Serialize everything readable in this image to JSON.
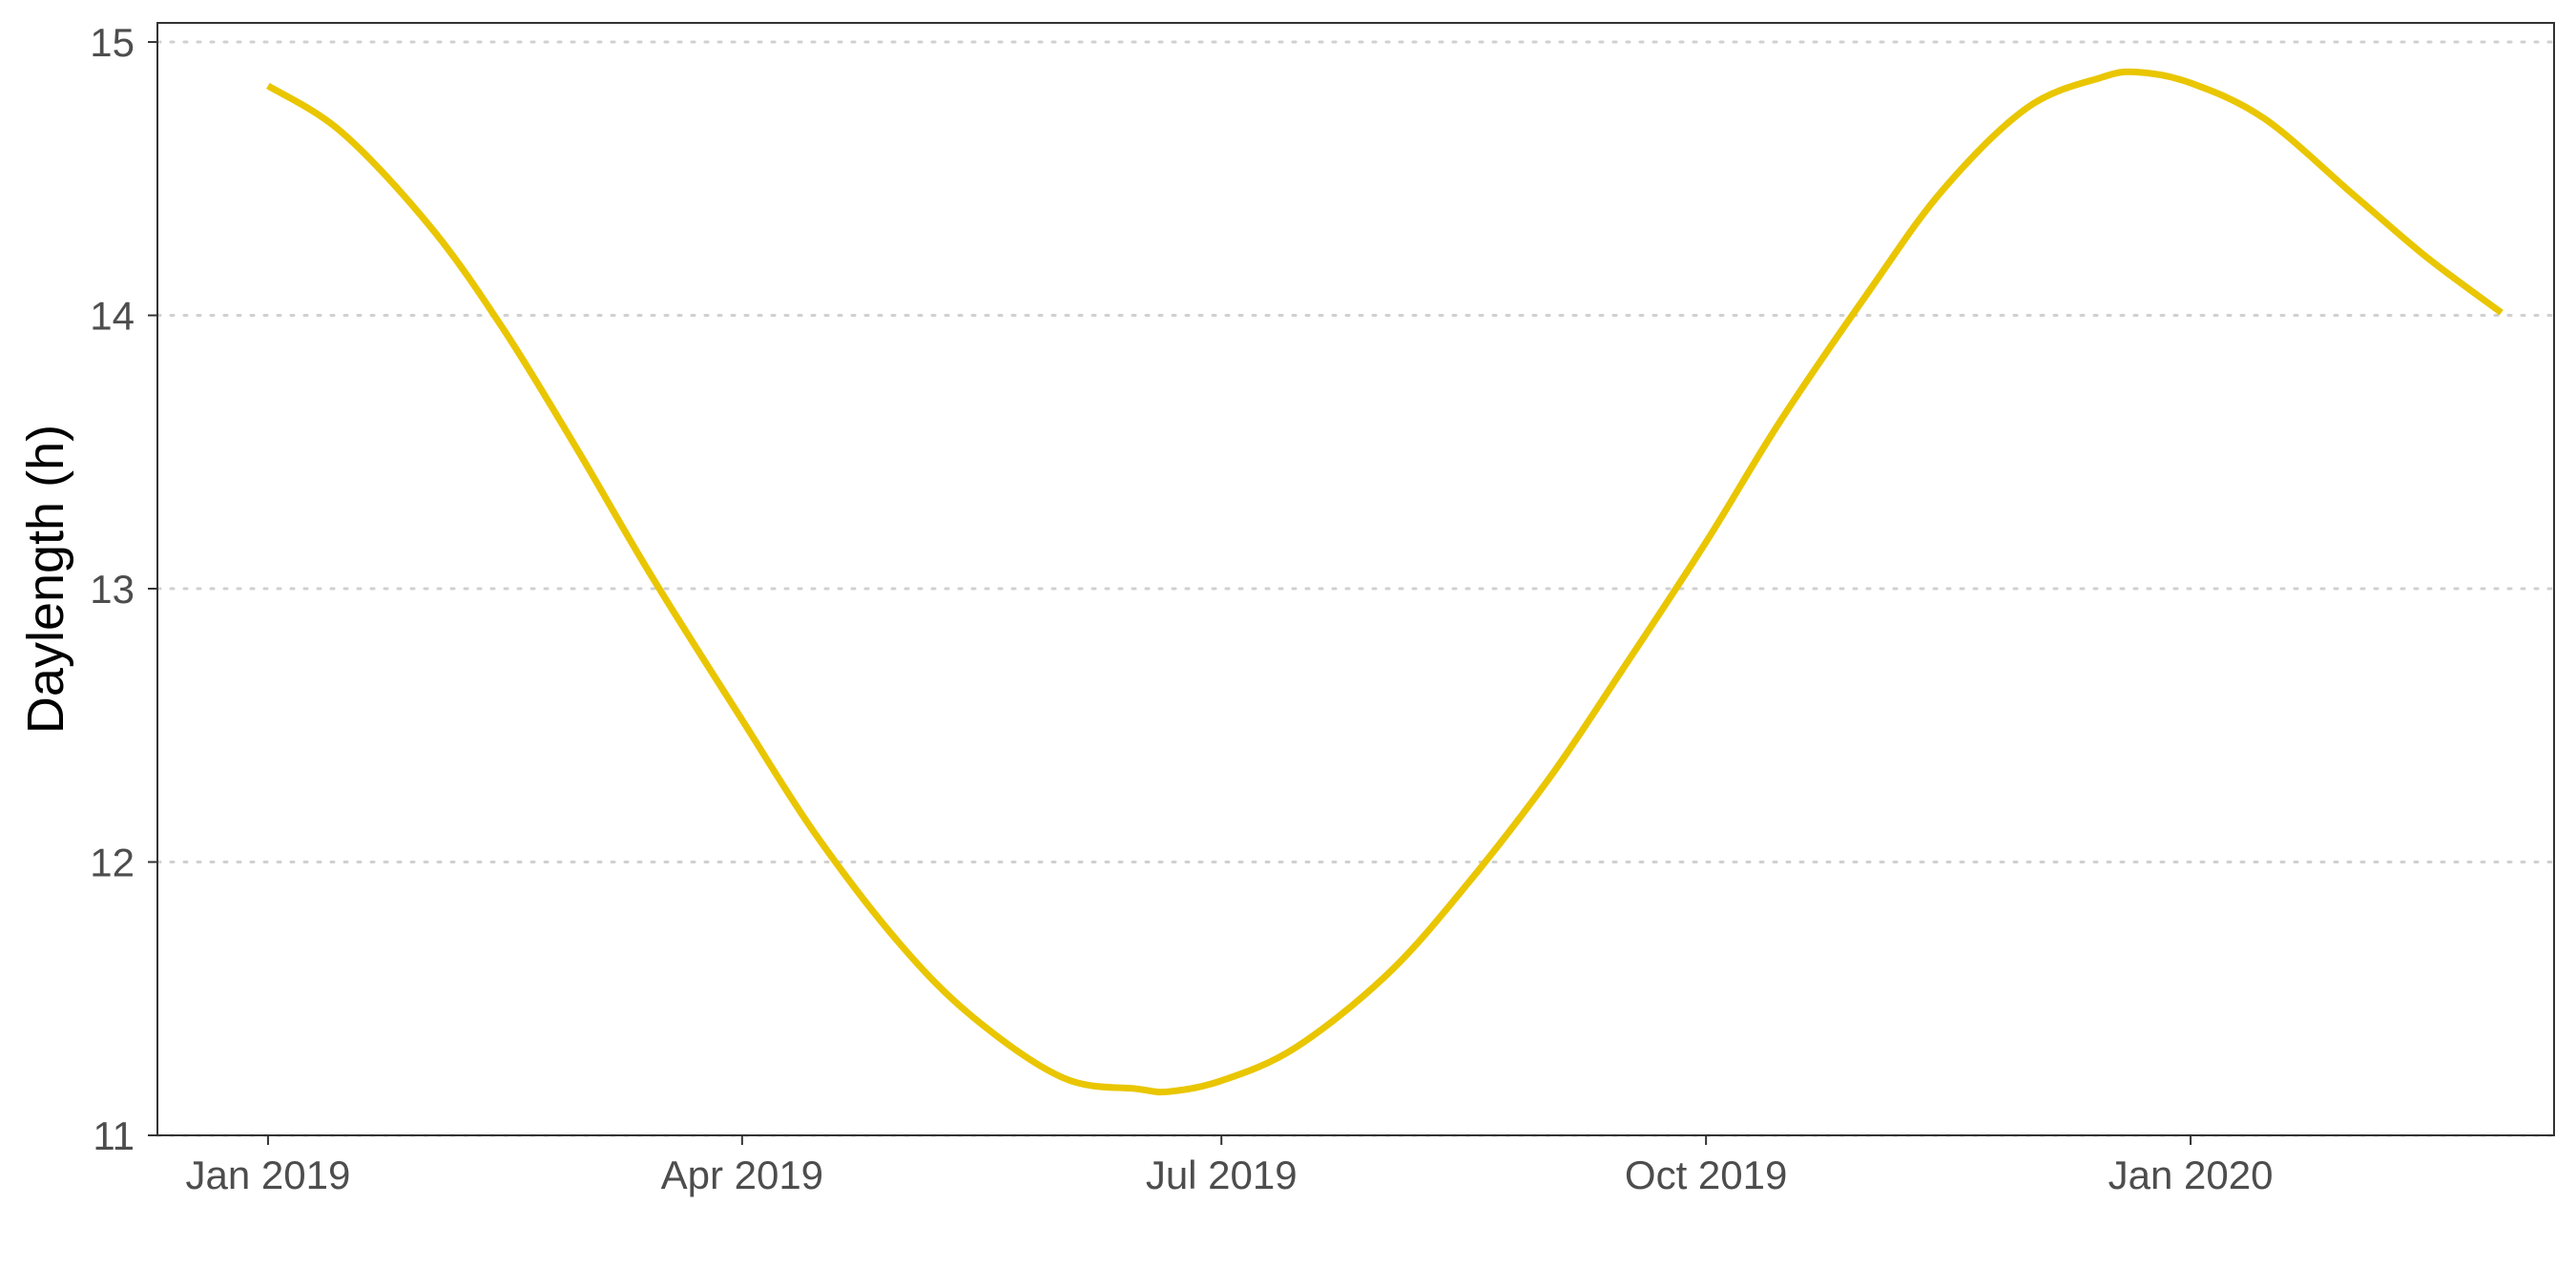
{
  "chart_data": {
    "type": "line",
    "title": "",
    "xlabel": "",
    "ylabel": "Daylength (h)",
    "x_tick_labels": [
      "Jan 2019",
      "Apr 2019",
      "Jul 2019",
      "Oct 2019",
      "Jan 2020"
    ],
    "x_tick_dates": [
      "2019-01-01",
      "2019-04-01",
      "2019-07-01",
      "2019-10-01",
      "2020-01-01"
    ],
    "y_ticks": [
      11,
      12,
      13,
      14,
      15
    ],
    "y_tick_labels": [
      "11",
      "12",
      "13",
      "14",
      "15"
    ],
    "xlim": [
      "2018-12-11",
      "2020-03-10"
    ],
    "ylim": [
      11,
      15.07
    ],
    "grid": "horizontal dotted",
    "legend": "none",
    "line_color": "#E9C600",
    "series": [
      {
        "x": [
          "2019-01-01",
          "2019-01-15",
          "2019-02-01",
          "2019-02-15",
          "2019-03-01",
          "2019-03-15",
          "2019-04-01",
          "2019-04-15",
          "2019-05-01",
          "2019-05-15",
          "2019-06-01",
          "2019-06-15",
          "2019-06-21",
          "2019-07-01",
          "2019-07-15",
          "2019-08-01",
          "2019-08-15",
          "2019-09-01",
          "2019-09-15",
          "2019-10-01",
          "2019-10-15",
          "2019-11-01",
          "2019-11-15",
          "2019-12-01",
          "2019-12-15",
          "2019-12-22",
          "2020-01-01",
          "2020-01-15",
          "2020-02-01",
          "2020-02-15",
          "2020-02-29"
        ],
        "y": [
          14.84,
          14.67,
          14.32,
          13.94,
          13.5,
          13.04,
          12.52,
          12.1,
          11.7,
          11.43,
          11.21,
          11.17,
          11.16,
          11.2,
          11.32,
          11.58,
          11.88,
          12.3,
          12.7,
          13.17,
          13.61,
          14.09,
          14.46,
          14.76,
          14.87,
          14.89,
          14.85,
          14.72,
          14.44,
          14.21,
          14.01
        ]
      }
    ]
  }
}
